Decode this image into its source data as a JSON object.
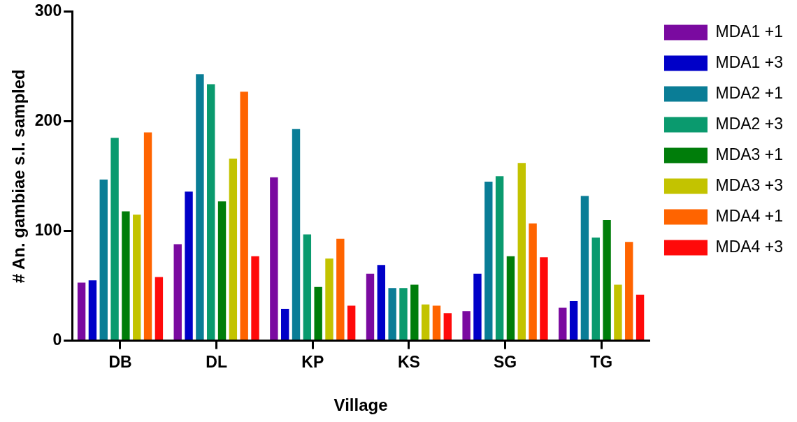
{
  "chart_data": {
    "type": "bar",
    "xlabel": "Village",
    "ylabel": "# An. gambiae s.l. sampled",
    "categories": [
      "DB",
      "DL",
      "KP",
      "KS",
      "SG",
      "TG"
    ],
    "series": [
      {
        "name": "MDA1 +1",
        "color": "#7a0aa0",
        "values": [
          53,
          88,
          149,
          61,
          27,
          30
        ]
      },
      {
        "name": "MDA1 +3",
        "color": "#0000c8",
        "values": [
          55,
          136,
          29,
          69,
          61,
          36
        ]
      },
      {
        "name": "MDA2 +1",
        "color": "#0a7d96",
        "values": [
          147,
          243,
          193,
          48,
          145,
          132
        ]
      },
      {
        "name": "MDA2 +3",
        "color": "#0a9a6e",
        "values": [
          185,
          234,
          97,
          48,
          150,
          94
        ]
      },
      {
        "name": "MDA3 +1",
        "color": "#007d0a",
        "values": [
          118,
          127,
          49,
          51,
          77,
          110
        ]
      },
      {
        "name": "MDA3 +3",
        "color": "#c3c300",
        "values": [
          115,
          166,
          75,
          33,
          162,
          51
        ]
      },
      {
        "name": "MDA4 +1",
        "color": "#ff6400",
        "values": [
          190,
          227,
          93,
          32,
          107,
          90
        ]
      },
      {
        "name": "MDA4 +3",
        "color": "#ff0a0a",
        "values": [
          58,
          77,
          32,
          25,
          76,
          42
        ]
      }
    ],
    "ylim": [
      0,
      300
    ],
    "yticks": [
      0,
      100,
      200,
      300
    ],
    "grid": false,
    "legend": "right"
  }
}
